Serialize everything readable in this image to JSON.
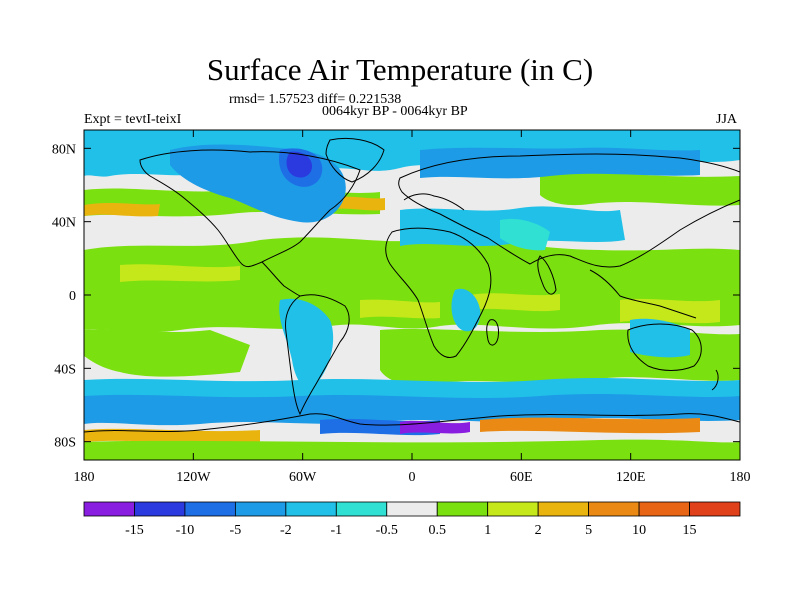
{
  "header": {
    "title": "Surface Air Temperature (in C)",
    "stats": "rmsd= 1.57523 diff= 0.221538",
    "subtitle": "0064kyr BP - 0064kyr BP",
    "left_label": "Expt = tevtI-teixI",
    "right_label": "JJA"
  },
  "map": {
    "projection": "cylindrical-equidistant",
    "lon_range": [
      -180,
      180
    ],
    "lat_range": [
      -90,
      90
    ],
    "x_ticks": [
      {
        "value": -180,
        "label": "180"
      },
      {
        "value": -120,
        "label": "120W"
      },
      {
        "value": -60,
        "label": "60W"
      },
      {
        "value": 0,
        "label": "0"
      },
      {
        "value": 60,
        "label": "60E"
      },
      {
        "value": 120,
        "label": "120E"
      },
      {
        "value": 180,
        "label": "180"
      }
    ],
    "y_ticks": [
      {
        "value": 80,
        "label": "80N"
      },
      {
        "value": 40,
        "label": "40N"
      },
      {
        "value": 0,
        "label": "0"
      },
      {
        "value": -40,
        "label": "40S"
      },
      {
        "value": -80,
        "label": "80S"
      }
    ]
  },
  "colorbar": {
    "labels": [
      "-15",
      "-10",
      "-5",
      "-2",
      "-1",
      "-0.5",
      "0.5",
      "1",
      "2",
      "5",
      "10",
      "15"
    ],
    "colors": [
      "#8a1ee0",
      "#2a3adf",
      "#1e6fe6",
      "#1d9be6",
      "#21c0e8",
      "#2fe0d3",
      "#ececec",
      "#7be00f",
      "#c5e81a",
      "#eab40f",
      "#ea8a14",
      "#e86516",
      "#e0401a"
    ]
  },
  "palette": {
    "bg_neutral": "#ececec",
    "cool": "#21c0e8",
    "mid_cool": "#1d9be6",
    "deep_cool": "#1e6fe6",
    "coldest": "#2a3adf",
    "violet": "#8a1ee0",
    "green": "#7be00f",
    "lime": "#c5e81a",
    "gold": "#eab40f",
    "orange": "#ea8a14",
    "teal": "#2fe0d3",
    "coast": "#000000"
  }
}
